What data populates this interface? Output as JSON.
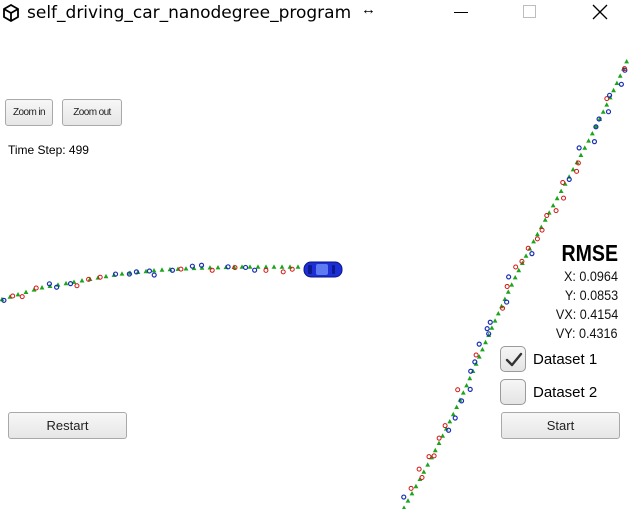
{
  "window": {
    "title": "self_driving_car_nanodegree_program",
    "app_icon": "unity-icon",
    "controls": [
      "minimize-icon",
      "maximize-icon",
      "close-icon"
    ]
  },
  "controls": {
    "zoom_in": "Zoom in",
    "zoom_out": "Zoom out",
    "restart": "Restart",
    "start": "Start"
  },
  "time_step": {
    "label": "Time Step:",
    "value": "499"
  },
  "rmse": {
    "title": "RMSE",
    "x": {
      "label": "X:",
      "value": "0.0964"
    },
    "y": {
      "label": "Y:",
      "value": "0.0853"
    },
    "vx": {
      "label": "VX:",
      "value": "0.4154"
    },
    "vy": {
      "label": "VY:",
      "value": "0.4316"
    }
  },
  "datasets": [
    {
      "label": "Dataset 1",
      "checked": true
    },
    {
      "label": "Dataset 2",
      "checked": false
    }
  ],
  "colors": {
    "lidar": "#d41515",
    "radar": "#1a2fb5",
    "estimate": "#1aa51a",
    "car": "#1c2fd6"
  }
}
